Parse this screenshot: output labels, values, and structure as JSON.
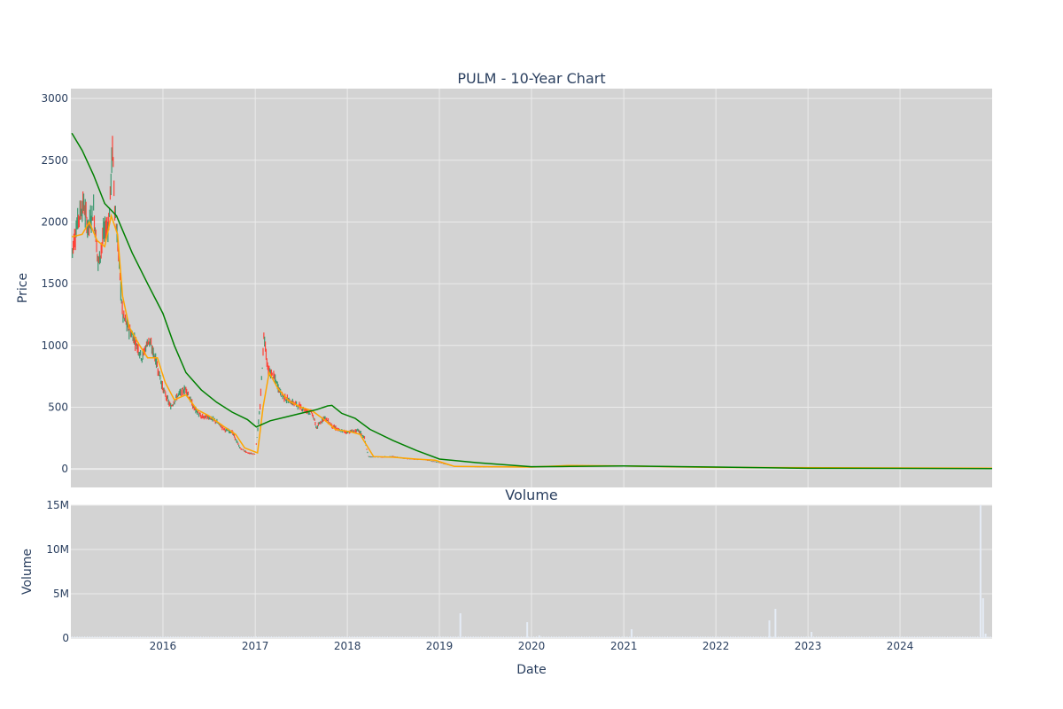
{
  "chart_data": [
    {
      "type": "candlestick",
      "title": "PULM - 10-Year Chart",
      "xlabel": "",
      "ylabel": "Price",
      "ylim": [
        -150,
        3080
      ],
      "yticks": [
        0,
        500,
        1000,
        1500,
        2000,
        2500,
        3000
      ],
      "xlim": [
        "2015-01-01",
        "2024-12-31"
      ],
      "grid": true,
      "background": "#d3d3d3",
      "gridColor": "#ebebeb",
      "colors": {
        "increasing": "#3d9970",
        "decreasing": "#ff4136",
        "ma_short": "#ffa500",
        "ma_long": "#008000"
      },
      "ohlc_points": [
        [
          "2015-01-05",
          1760
        ],
        [
          "2015-02-01",
          2050
        ],
        [
          "2015-02-20",
          2150
        ],
        [
          "2015-03-10",
          1950
        ],
        [
          "2015-04-01",
          2100
        ],
        [
          "2015-04-20",
          1650
        ],
        [
          "2015-05-10",
          1900
        ],
        [
          "2015-06-01",
          2000
        ],
        [
          "2015-06-15",
          2600
        ],
        [
          "2015-06-25",
          2100
        ],
        [
          "2015-07-10",
          1700
        ],
        [
          "2015-07-25",
          1250
        ],
        [
          "2015-08-15",
          1150
        ],
        [
          "2015-09-10",
          1050
        ],
        [
          "2015-10-10",
          900
        ],
        [
          "2015-11-05",
          1050
        ],
        [
          "2015-12-01",
          900
        ],
        [
          "2016-01-01",
          650
        ],
        [
          "2016-02-01",
          500
        ],
        [
          "2016-03-01",
          600
        ],
        [
          "2016-04-01",
          650
        ],
        [
          "2016-05-01",
          500
        ],
        [
          "2016-06-01",
          420
        ],
        [
          "2016-07-01",
          420
        ],
        [
          "2016-08-01",
          380
        ],
        [
          "2016-09-01",
          320
        ],
        [
          "2016-10-01",
          300
        ],
        [
          "2016-11-01",
          170
        ],
        [
          "2016-12-01",
          130
        ],
        [
          "2017-01-01",
          120
        ],
        [
          "2017-01-20",
          500
        ],
        [
          "2017-02-05",
          1100
        ],
        [
          "2017-02-20",
          800
        ],
        [
          "2017-03-15",
          750
        ],
        [
          "2017-04-15",
          600
        ],
        [
          "2017-05-15",
          550
        ],
        [
          "2017-06-15",
          520
        ],
        [
          "2017-07-15",
          480
        ],
        [
          "2017-08-15",
          450
        ],
        [
          "2017-09-01",
          330
        ],
        [
          "2017-10-01",
          420
        ],
        [
          "2017-11-01",
          350
        ],
        [
          "2017-12-01",
          310
        ],
        [
          "2018-01-01",
          300
        ],
        [
          "2018-02-15",
          310
        ],
        [
          "2018-03-10",
          250
        ],
        [
          "2018-03-25",
          100
        ],
        [
          "2018-05-01",
          95
        ],
        [
          "2018-07-01",
          100
        ],
        [
          "2018-09-01",
          80
        ],
        [
          "2018-11-01",
          75
        ],
        [
          "2019-01-01",
          50
        ],
        [
          "2019-03-01",
          20
        ],
        [
          "2019-06-01",
          15
        ],
        [
          "2019-12-31",
          15
        ],
        [
          "2020-06-01",
          30
        ],
        [
          "2021-01-01",
          25
        ],
        [
          "2021-06-01",
          18
        ],
        [
          "2022-01-01",
          10
        ],
        [
          "2023-01-01",
          5
        ],
        [
          "2024-06-01",
          3
        ],
        [
          "2024-12-31",
          8
        ]
      ],
      "series": [
        {
          "values": [
            [
              "2015-01-05",
              1880
            ],
            [
              "2015-02-15",
              1900
            ],
            [
              "2015-03-15",
              2000
            ],
            [
              "2015-04-15",
              1850
            ],
            [
              "2015-05-15",
              1800
            ],
            [
              "2015-06-10",
              2050
            ],
            [
              "2015-07-05",
              1900
            ],
            [
              "2015-07-25",
              1400
            ],
            [
              "2015-08-20",
              1150
            ],
            [
              "2015-10-01",
              1000
            ],
            [
              "2015-11-01",
              900
            ],
            [
              "2015-12-10",
              900
            ],
            [
              "2016-01-10",
              700
            ],
            [
              "2016-02-15",
              560
            ],
            [
              "2016-04-01",
              600
            ],
            [
              "2016-05-15",
              480
            ],
            [
              "2016-07-01",
              430
            ],
            [
              "2016-09-01",
              340
            ],
            [
              "2016-10-15",
              280
            ],
            [
              "2016-11-20",
              170
            ],
            [
              "2017-01-10",
              130
            ],
            [
              "2017-02-01",
              500
            ],
            [
              "2017-02-25",
              780
            ],
            [
              "2017-04-01",
              650
            ],
            [
              "2017-05-15",
              550
            ],
            [
              "2017-07-01",
              500
            ],
            [
              "2017-08-15",
              470
            ],
            [
              "2017-10-01",
              400
            ],
            [
              "2017-11-15",
              320
            ],
            [
              "2018-01-15",
              300
            ],
            [
              "2018-02-20",
              280
            ],
            [
              "2018-04-15",
              100
            ],
            [
              "2018-07-01",
              95
            ],
            [
              "2018-10-01",
              80
            ],
            [
              "2018-12-15",
              70
            ],
            [
              "2019-03-01",
              20
            ],
            [
              "2019-12-31",
              15
            ],
            [
              "2020-06-01",
              28
            ],
            [
              "2021-01-01",
              24
            ],
            [
              "2022-01-01",
              12
            ],
            [
              "2024-12-31",
              6
            ]
          ]
        },
        {
          "values": [
            [
              "2015-01-05",
              2720
            ],
            [
              "2015-02-15",
              2580
            ],
            [
              "2015-04-01",
              2380
            ],
            [
              "2015-05-15",
              2150
            ],
            [
              "2015-07-01",
              2050
            ],
            [
              "2015-09-01",
              1750
            ],
            [
              "2015-11-01",
              1500
            ],
            [
              "2016-01-01",
              1260
            ],
            [
              "2016-02-15",
              1000
            ],
            [
              "2016-04-01",
              780
            ],
            [
              "2016-06-01",
              640
            ],
            [
              "2016-08-01",
              540
            ],
            [
              "2016-10-01",
              460
            ],
            [
              "2016-12-01",
              400
            ],
            [
              "2017-01-05",
              340
            ],
            [
              "2017-03-01",
              390
            ],
            [
              "2017-05-01",
              420
            ],
            [
              "2017-07-01",
              450
            ],
            [
              "2017-09-01",
              480
            ],
            [
              "2017-10-15",
              510
            ],
            [
              "2017-11-01",
              515
            ],
            [
              "2017-12-10",
              450
            ],
            [
              "2018-02-01",
              410
            ],
            [
              "2018-04-01",
              320
            ],
            [
              "2018-07-01",
              230
            ],
            [
              "2018-10-01",
              150
            ],
            [
              "2019-01-01",
              80
            ],
            [
              "2019-06-01",
              50
            ],
            [
              "2019-12-31",
              18
            ],
            [
              "2020-06-01",
              20
            ],
            [
              "2021-01-01",
              24
            ],
            [
              "2022-01-01",
              15
            ],
            [
              "2023-01-01",
              5
            ],
            [
              "2024-12-31",
              3
            ]
          ]
        }
      ]
    },
    {
      "type": "bar",
      "title": "Volume",
      "xlabel": "Date",
      "ylabel": "Volume",
      "ylim": [
        0,
        15000000
      ],
      "yticks": [
        0,
        5000000,
        10000000,
        15000000
      ],
      "ytick_labels": [
        "0",
        "5M",
        "10M",
        "15M"
      ],
      "xticks": [
        "2016-01-01",
        "2017-01-01",
        "2018-01-01",
        "2019-01-01",
        "2020-01-01",
        "2021-01-01",
        "2022-01-01",
        "2023-01-01",
        "2024-01-01"
      ],
      "xtick_labels": [
        "2016",
        "2017",
        "2018",
        "2019",
        "2020",
        "2021",
        "2022",
        "2023",
        "2024"
      ],
      "bar_color": "#e5ecf6",
      "x": [
        "2019-03-25",
        "2019-12-15",
        "2020-02-01",
        "2021-02-01",
        "2022-08-01",
        "2022-08-25",
        "2023-01-15",
        "2024-11-15",
        "2024-11-25",
        "2024-12-05"
      ],
      "values": [
        2800000,
        1800000,
        300000,
        1000000,
        2000000,
        3300000,
        700000,
        15000000,
        4500000,
        500000
      ]
    }
  ]
}
